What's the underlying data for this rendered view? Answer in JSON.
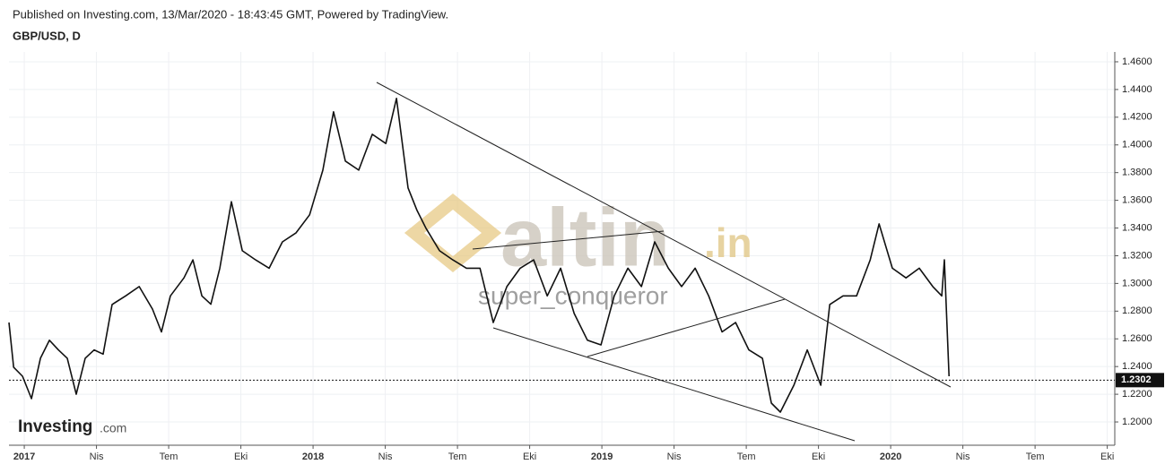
{
  "header": {
    "published": "Published on Investing.com, 13/Mar/2020 - 18:43:45 GMT, Powered by TradingView.",
    "symbol": "GBP/USD, D"
  },
  "watermark": {
    "brand": "altin",
    "suffix": ".in",
    "author": "super_conqueror"
  },
  "logo": {
    "main": "Investing",
    "suffix": ".com"
  },
  "chart_data": {
    "type": "line",
    "x": [
      2016.947,
      2016.963,
      2016.994,
      2017.025,
      2017.056,
      2017.087,
      2017.118,
      2017.149,
      2017.18,
      2017.211,
      2017.242,
      2017.273,
      2017.304,
      2017.351,
      2017.398,
      2017.444,
      2017.475,
      2017.506,
      2017.553,
      2017.584,
      2017.615,
      2017.646,
      2017.677,
      2017.717,
      2017.755,
      2017.801,
      2017.848,
      2017.894,
      2017.941,
      2017.988,
      2018.034,
      2018.071,
      2018.112,
      2018.158,
      2018.205,
      2018.252,
      2018.289,
      2018.329,
      2018.36,
      2018.391,
      2018.438,
      2018.484,
      2018.531,
      2018.578,
      2018.624,
      2018.671,
      2018.717,
      2018.764,
      2018.811,
      2018.857,
      2018.904,
      2018.95,
      2018.997,
      2019.043,
      2019.09,
      2019.137,
      2019.183,
      2019.23,
      2019.276,
      2019.323,
      2019.37,
      2019.416,
      2019.463,
      2019.509,
      2019.556,
      2019.587,
      2019.618,
      2019.665,
      2019.711,
      2019.758,
      2019.789,
      2019.835,
      2019.882,
      2019.929,
      2019.96,
      2020.006,
      2020.053,
      2020.099,
      2020.146,
      2020.177,
      2020.186,
      2020.202
    ],
    "series": [
      {
        "name": "GBP/USD",
        "color": "#111111",
        "values": [
          1.2718,
          1.2395,
          1.233,
          1.2168,
          1.246,
          1.259,
          1.252,
          1.246,
          1.22,
          1.246,
          1.252,
          1.249,
          1.2848,
          1.291,
          1.2977,
          1.2815,
          1.265,
          1.291,
          1.304,
          1.317,
          1.291,
          1.285,
          1.311,
          1.359,
          1.3236,
          1.317,
          1.311,
          1.33,
          1.3365,
          1.3495,
          1.3818,
          1.4239,
          1.3883,
          1.3818,
          1.4077,
          1.401,
          1.4336,
          1.3689,
          1.3527,
          1.3398,
          1.3236,
          1.317,
          1.311,
          1.311,
          1.2718,
          1.2977,
          1.311,
          1.317,
          1.291,
          1.311,
          1.2783,
          1.259,
          1.2556,
          1.291,
          1.311,
          1.2977,
          1.33,
          1.311,
          1.2977,
          1.311,
          1.291,
          1.265,
          1.2718,
          1.252,
          1.246,
          1.2136,
          1.2071,
          1.2265,
          1.252,
          1.2265,
          1.2848,
          1.291,
          1.291,
          1.317,
          1.343,
          1.311,
          1.304,
          1.311,
          1.2977,
          1.291,
          1.317,
          1.233
        ]
      }
    ],
    "last_price": 1.2302,
    "xlim": [
      2016.947,
      2020.776
    ],
    "xticks": [
      2017,
      {
        "value": 2017.25,
        "label": "Nis"
      },
      {
        "value": 2017.5,
        "label": "Tem"
      },
      {
        "value": 2017.75,
        "label": "Eki"
      },
      2018,
      {
        "value": 2018.25,
        "label": "Nis"
      },
      {
        "value": 2018.5,
        "label": "Tem"
      },
      {
        "value": 2018.75,
        "label": "Eki"
      },
      2019,
      {
        "value": 2019.25,
        "label": "Nis"
      },
      {
        "value": 2019.5,
        "label": "Tem"
      },
      {
        "value": 2019.75,
        "label": "Eki"
      },
      2020,
      {
        "value": 2020.25,
        "label": "Nis"
      },
      {
        "value": 2020.5,
        "label": "Tem"
      },
      {
        "value": 2020.75,
        "label": "Eki"
      }
    ],
    "ylim": [
      1.1832,
      1.4671
    ],
    "yticks": [
      {
        "value": 1.2,
        "label": "1.2000"
      },
      {
        "value": 1.22,
        "label": "1.2200"
      },
      {
        "value": 1.24,
        "label": "1.2400"
      },
      {
        "value": 1.26,
        "label": "1.2600"
      },
      {
        "value": 1.28,
        "label": "1.2800"
      },
      {
        "value": 1.3,
        "label": "1.3000"
      },
      {
        "value": 1.32,
        "label": "1.3200"
      },
      {
        "value": 1.34,
        "label": "1.3400"
      },
      {
        "value": 1.36,
        "label": "1.3600"
      },
      {
        "value": 1.38,
        "label": "1.3800"
      },
      {
        "value": 1.4,
        "label": "1.4000"
      },
      {
        "value": 1.42,
        "label": "1.4200"
      },
      {
        "value": 1.44,
        "label": "1.4400"
      },
      {
        "value": 1.46,
        "label": "1.4600"
      }
    ],
    "grid": true
  }
}
